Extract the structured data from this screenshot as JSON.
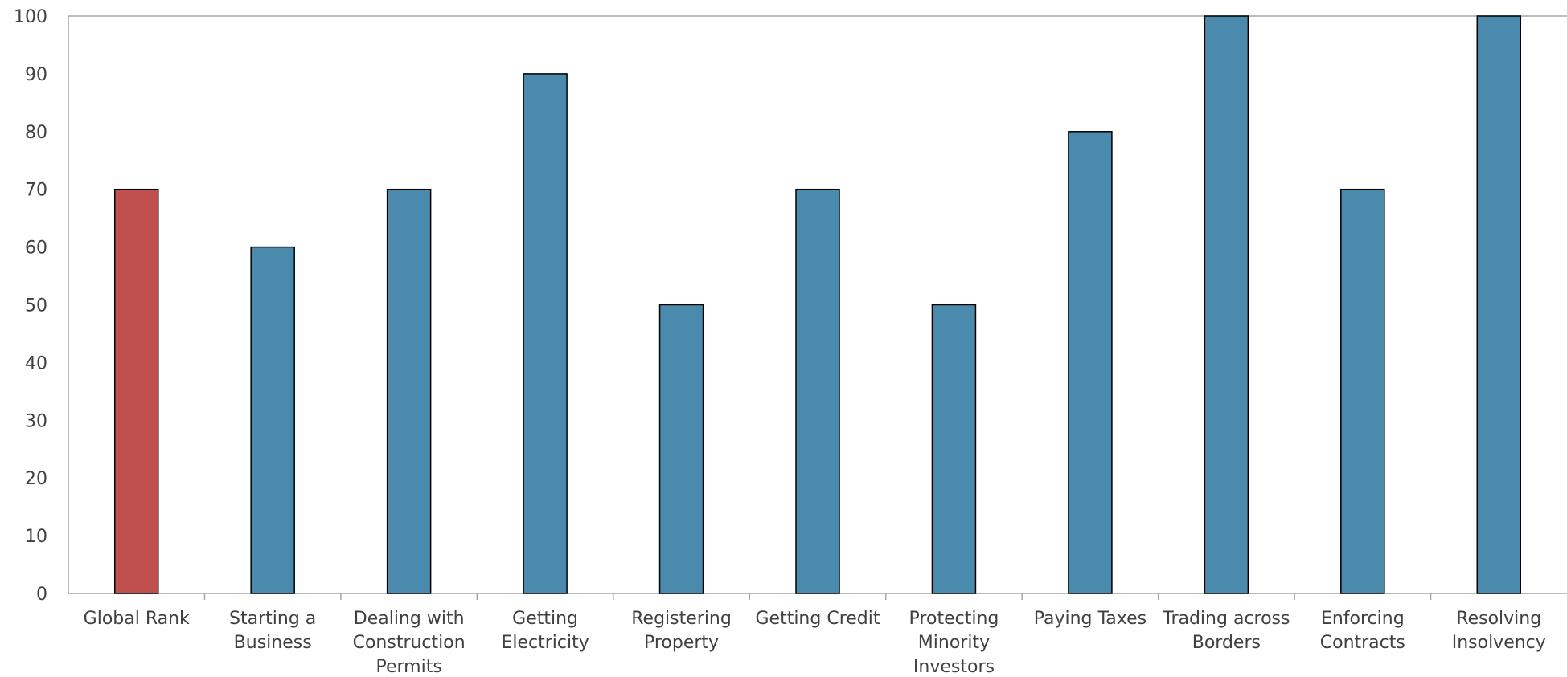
{
  "chart_data": {
    "type": "bar",
    "title": "",
    "xlabel": "",
    "ylabel": "",
    "ylim": [
      0,
      100
    ],
    "yticks": [
      0,
      10,
      20,
      30,
      40,
      50,
      60,
      70,
      80,
      90,
      100
    ],
    "grid": false,
    "legend": "none",
    "categories": [
      [
        "Global Rank"
      ],
      [
        "Starting a",
        "Business"
      ],
      [
        "Dealing with",
        "Construction",
        "Permits"
      ],
      [
        "Getting",
        "Electricity"
      ],
      [
        "Registering",
        "Property"
      ],
      [
        "Getting Credit"
      ],
      [
        "Protecting",
        "Minority",
        "Investors"
      ],
      [
        "Paying Taxes"
      ],
      [
        "Trading across",
        "Borders"
      ],
      [
        "Enforcing",
        "Contracts"
      ],
      [
        "Resolving",
        "Insolvency"
      ]
    ],
    "values": [
      70,
      60,
      70,
      90,
      50,
      70,
      50,
      80,
      100,
      70,
      100
    ],
    "colors": {
      "highlight": "#c0504d",
      "default": "#4a8aad",
      "bar_border": "#000000",
      "axis": "#a6a6a6",
      "text": "#404040"
    },
    "highlight_index": 0
  }
}
